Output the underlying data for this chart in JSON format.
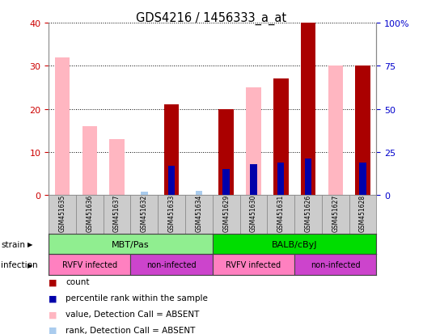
{
  "title": "GDS4216 / 1456333_a_at",
  "samples": [
    "GSM451635",
    "GSM451636",
    "GSM451637",
    "GSM451632",
    "GSM451633",
    "GSM451634",
    "GSM451629",
    "GSM451630",
    "GSM451631",
    "GSM451626",
    "GSM451627",
    "GSM451628"
  ],
  "count": [
    0,
    0,
    0,
    0,
    21,
    0,
    20,
    0,
    27,
    40,
    0,
    30
  ],
  "percentile_rank": [
    0,
    0,
    0,
    0,
    17,
    0,
    15,
    18,
    19,
    21,
    0,
    19
  ],
  "value_absent": [
    32,
    16,
    13,
    0,
    0,
    0,
    0,
    25,
    0,
    0,
    30,
    0
  ],
  "rank_absent": [
    0,
    0,
    0,
    2,
    0,
    2.5,
    0,
    0,
    0,
    0,
    0,
    0
  ],
  "strain_groups": [
    {
      "label": "MBT/Pas",
      "start": 0,
      "end": 6,
      "color": "#90EE90"
    },
    {
      "label": "BALB/cByJ",
      "start": 6,
      "end": 12,
      "color": "#00DD00"
    }
  ],
  "infection_groups": [
    {
      "label": "RVFV infected",
      "start": 0,
      "end": 3,
      "color": "#FF80C0"
    },
    {
      "label": "non-infected",
      "start": 3,
      "end": 6,
      "color": "#CC44CC"
    },
    {
      "label": "RVFV infected",
      "start": 6,
      "end": 9,
      "color": "#FF80C0"
    },
    {
      "label": "non-infected",
      "start": 9,
      "end": 12,
      "color": "#CC44CC"
    }
  ],
  "ylim_left": [
    0,
    40
  ],
  "ylim_right": [
    0,
    100
  ],
  "yticks_left": [
    0,
    10,
    20,
    30,
    40
  ],
  "yticks_right": [
    0,
    25,
    50,
    75,
    100
  ],
  "count_color": "#AA0000",
  "percentile_color": "#0000AA",
  "value_absent_color": "#FFB6C1",
  "rank_absent_color": "#AACCEE",
  "bg_color": "#FFFFFF",
  "left_axis_color": "#CC0000",
  "right_axis_color": "#0000CC"
}
